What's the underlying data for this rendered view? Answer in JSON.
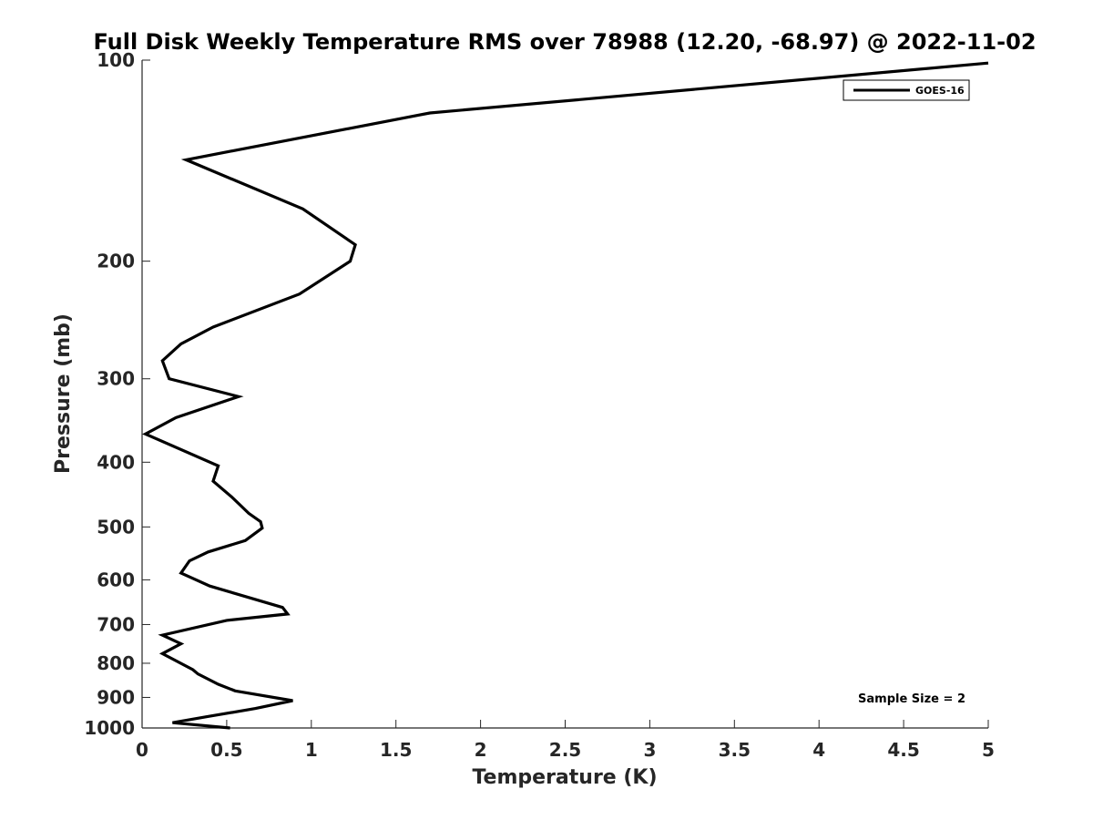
{
  "chart_data": {
    "type": "line",
    "title": "Full Disk Weekly Temperature RMS over 78988 (12.20, -68.97) @ 2022-11-02",
    "xlabel": "Temperature (K)",
    "ylabel": "Pressure (mb)",
    "xlim": [
      0,
      5
    ],
    "ylim": [
      100,
      1000
    ],
    "y_scale": "log",
    "y_reversed": true,
    "grid": false,
    "legend_position": "top-right",
    "x_ticks": [
      "0",
      "0.5",
      "1",
      "1.5",
      "2",
      "2.5",
      "3",
      "3.5",
      "4",
      "4.5",
      "5"
    ],
    "y_ticks": [
      "100",
      "200",
      "300",
      "400",
      "500",
      "600",
      "700",
      "800",
      "900",
      "1000"
    ],
    "series": [
      {
        "name": "GOES-16",
        "color": "#000000",
        "points": [
          [
            5.0,
            101
          ],
          [
            1.7,
            120
          ],
          [
            0.26,
            141
          ],
          [
            0.95,
            167
          ],
          [
            1.26,
            189
          ],
          [
            1.23,
            200
          ],
          [
            0.93,
            224
          ],
          [
            0.42,
            251
          ],
          [
            0.23,
            266
          ],
          [
            0.12,
            282
          ],
          [
            0.16,
            300
          ],
          [
            0.57,
            319
          ],
          [
            0.2,
            343
          ],
          [
            0.02,
            363
          ],
          [
            0.45,
            405
          ],
          [
            0.42,
            427
          ],
          [
            0.53,
            451
          ],
          [
            0.63,
            477
          ],
          [
            0.7,
            491
          ],
          [
            0.71,
            502
          ],
          [
            0.61,
            524
          ],
          [
            0.39,
            545
          ],
          [
            0.28,
            562
          ],
          [
            0.23,
            586
          ],
          [
            0.4,
            613
          ],
          [
            0.83,
            660
          ],
          [
            0.86,
            675
          ],
          [
            0.5,
            690
          ],
          [
            0.12,
            726
          ],
          [
            0.23,
            748
          ],
          [
            0.12,
            774
          ],
          [
            0.3,
            818
          ],
          [
            0.33,
            830
          ],
          [
            0.45,
            860
          ],
          [
            0.55,
            880
          ],
          [
            0.89,
            910
          ],
          [
            0.67,
            935
          ],
          [
            0.38,
            962
          ],
          [
            0.18,
            982
          ],
          [
            0.52,
            1000
          ]
        ]
      }
    ],
    "annotations": [
      "Sample Size = 2"
    ]
  }
}
